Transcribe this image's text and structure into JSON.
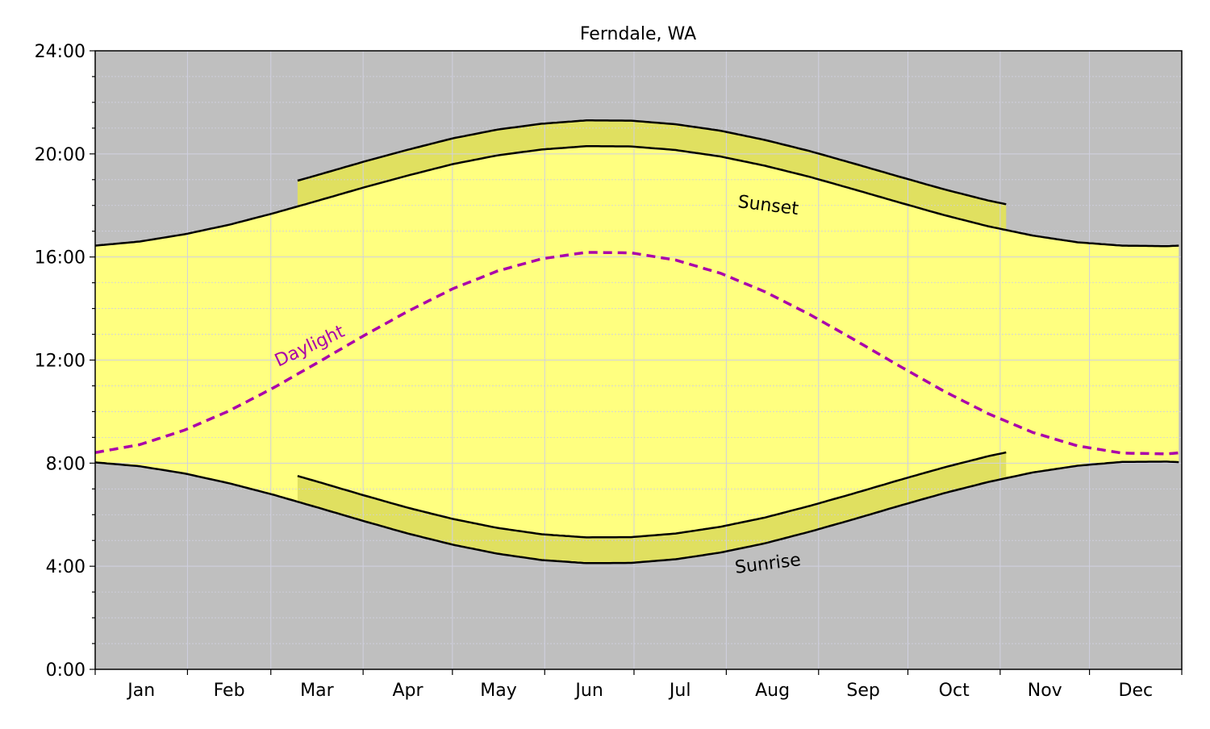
{
  "chart_data": {
    "type": "area",
    "title": "Ferndale, WA",
    "xlabel": "",
    "ylabel": "",
    "ylim": [
      0,
      24
    ],
    "xlim": [
      1,
      365
    ],
    "grid": true,
    "ytick_labels": [
      "0:00",
      "4:00",
      "8:00",
      "12:00",
      "16:00",
      "20:00",
      "24:00"
    ],
    "ytick_values": [
      0,
      4,
      8,
      12,
      16,
      20,
      24
    ],
    "month_labels": [
      "Jan",
      "Feb",
      "Mar",
      "Apr",
      "May",
      "Jun",
      "Jul",
      "Aug",
      "Sep",
      "Oct",
      "Nov",
      "Dec"
    ],
    "month_start_days": [
      1,
      32,
      60,
      91,
      121,
      152,
      182,
      213,
      244,
      274,
      305,
      335,
      366
    ],
    "day_of_year": [
      1,
      16,
      31,
      46,
      61,
      76,
      91,
      106,
      121,
      136,
      151,
      166,
      181,
      196,
      211,
      226,
      241,
      256,
      271,
      286,
      301,
      316,
      331,
      346,
      361,
      365
    ],
    "series": [
      {
        "name": "Sunrise",
        "unit": "hours (standard time)",
        "values": [
          8.03,
          7.88,
          7.6,
          7.22,
          6.77,
          6.27,
          5.76,
          5.27,
          4.84,
          4.49,
          4.24,
          4.12,
          4.13,
          4.27,
          4.53,
          4.89,
          5.34,
          5.83,
          6.34,
          6.83,
          7.27,
          7.64,
          7.9,
          8.05,
          8.06,
          8.04
        ]
      },
      {
        "name": "Sunset",
        "unit": "hours (standard time)",
        "values": [
          16.44,
          16.6,
          16.88,
          17.25,
          17.7,
          18.19,
          18.69,
          19.16,
          19.6,
          19.94,
          20.17,
          20.3,
          20.29,
          20.15,
          19.9,
          19.54,
          19.11,
          18.62,
          18.12,
          17.63,
          17.19,
          16.83,
          16.57,
          16.44,
          16.42,
          16.44
        ]
      },
      {
        "name": "Daylight",
        "unit": "hours",
        "values": [
          8.41,
          8.72,
          9.28,
          10.03,
          10.93,
          11.92,
          12.93,
          13.89,
          14.76,
          15.45,
          15.93,
          16.18,
          16.16,
          15.88,
          15.37,
          14.65,
          13.77,
          12.79,
          11.78,
          10.8,
          9.92,
          9.19,
          8.67,
          8.39,
          8.36,
          8.4
        ]
      }
    ],
    "dst": {
      "start_day": 69,
      "end_day": 307,
      "offset_hours": 1
    },
    "annotations": {
      "sunset": "Sunset",
      "sunrise": "Sunrise",
      "daylight": "Daylight"
    },
    "colors": {
      "night": "#bfbfbf",
      "day": "#ffff80",
      "dst_band": "#e0e060",
      "daylight_line": "#aa00aa",
      "curve": "#000000"
    }
  }
}
